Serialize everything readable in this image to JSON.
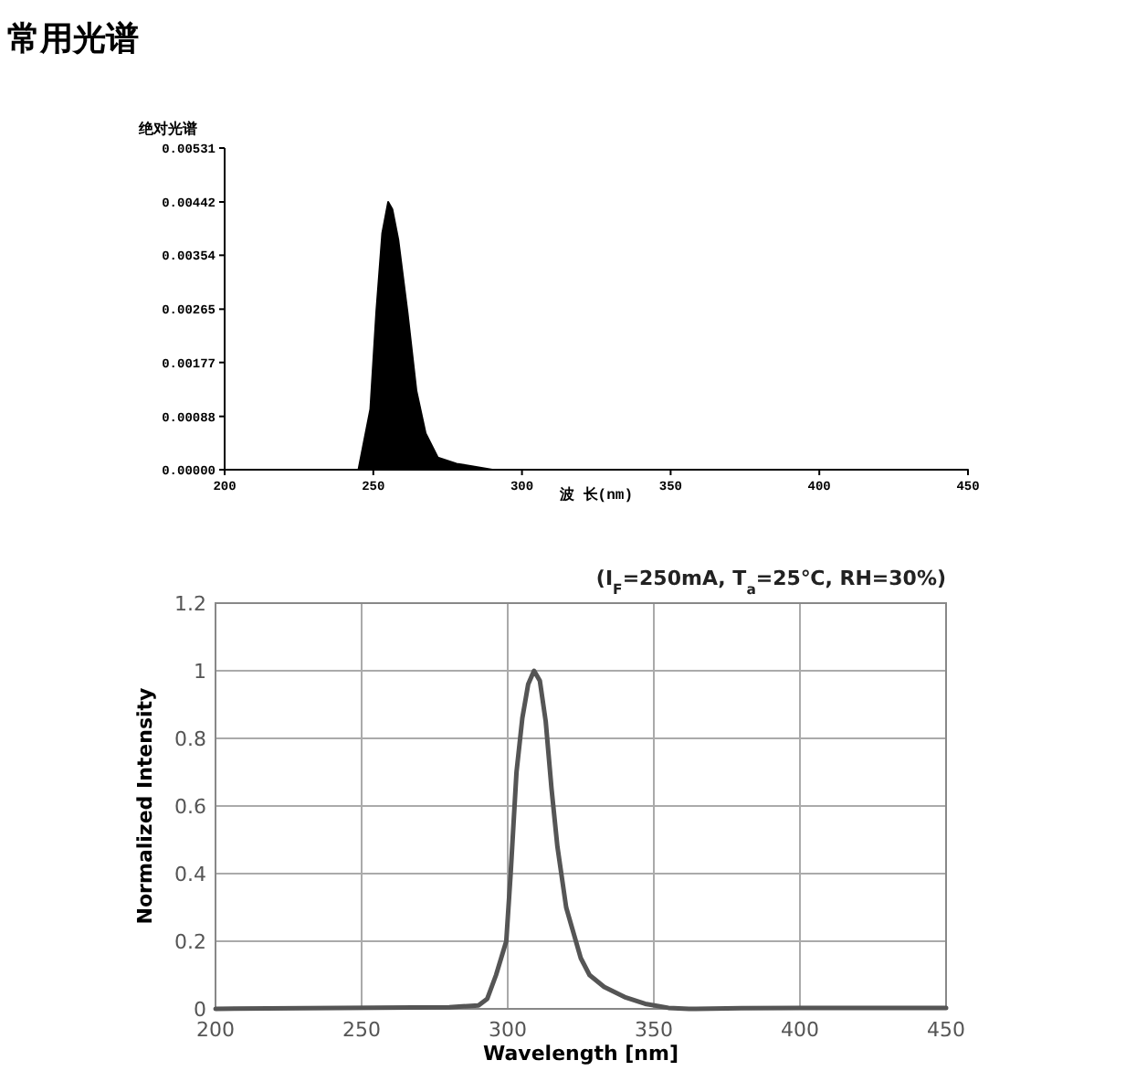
{
  "chart_data": [
    {
      "type": "area",
      "title": "常用光谱",
      "ylabel": "绝对光谱",
      "xlabel": "波 长(nm)",
      "xlim": [
        200,
        450
      ],
      "xticks": [
        200,
        250,
        300,
        350,
        400,
        450
      ],
      "ylim": [
        0,
        0.00531
      ],
      "yticks": [
        {
          "value": 0,
          "label": "0.00000"
        },
        {
          "value": 0.00088,
          "label": "0.00088"
        },
        {
          "value": 0.00177,
          "label": "0.00177"
        },
        {
          "value": 0.00265,
          "label": "0.00265"
        },
        {
          "value": 0.00354,
          "label": "0.00354"
        },
        {
          "value": 0.00442,
          "label": "0.00442"
        },
        {
          "value": 0.00531,
          "label": "0.00531"
        }
      ],
      "x": [
        200,
        240,
        245,
        249,
        251,
        253,
        255,
        256.4,
        258.4,
        261.5,
        264.5,
        267.6,
        271.7,
        278,
        290,
        300,
        350,
        375,
        390,
        410,
        450
      ],
      "series": [
        {
          "color": "#000000",
          "values": [
            0,
            0,
            0,
            0.001,
            0.0026,
            0.0039,
            0.00442,
            0.0043,
            0.0038,
            0.0026,
            0.0013,
            0.0006,
            0.0002,
            0.0001,
            0,
            0,
            0,
            0,
            0,
            0,
            0
          ]
        }
      ]
    },
    {
      "type": "line",
      "xlabel": "Wavelength [nm]",
      "ylabel": "Normalized Intensity",
      "annotations": [
        "(I$_{F}$=250mA, T$_{a}$=25℃, RH=30%)"
      ],
      "grid": true,
      "xlim": [
        200,
        450
      ],
      "xticks": [
        200,
        250,
        300,
        350,
        400,
        450
      ],
      "ylim": [
        0,
        1.2
      ],
      "yticks": [
        0,
        0.2,
        0.4,
        0.6,
        0.8,
        1,
        1.2
      ],
      "x": [
        200,
        280,
        290,
        293,
        296,
        299.5,
        301,
        303,
        305,
        307,
        309,
        311,
        313,
        315,
        317,
        320,
        322,
        325,
        328,
        333,
        340,
        347,
        355,
        362,
        380,
        400,
        450
      ],
      "series": [
        {
          "color": "#555555",
          "values": [
            0,
            0.005,
            0.01,
            0.03,
            0.1,
            0.2,
            0.4,
            0.7,
            0.86,
            0.96,
            1.0,
            0.97,
            0.85,
            0.65,
            0.48,
            0.3,
            0.24,
            0.15,
            0.1,
            0.065,
            0.035,
            0.015,
            0.003,
            0,
            0.002,
            0.003,
            0.003
          ]
        }
      ]
    }
  ]
}
